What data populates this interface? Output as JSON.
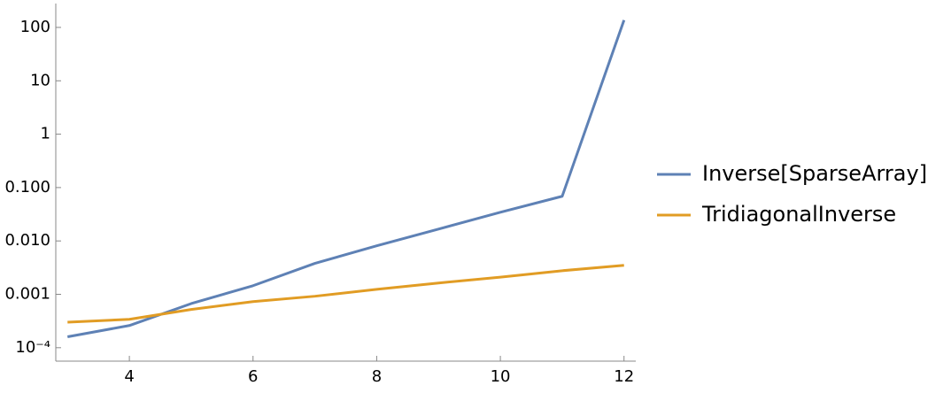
{
  "chart_data": {
    "type": "line",
    "log_y": true,
    "x": [
      3,
      4,
      5,
      6,
      7,
      8,
      9,
      10,
      11,
      12
    ],
    "series": [
      {
        "name": "Inverse[SparseArray]",
        "color": "#5e81b5",
        "values": [
          0.00016,
          0.00026,
          0.00067,
          0.00145,
          0.0038,
          0.0081,
          0.0167,
          0.0344,
          0.0686,
          137
        ]
      },
      {
        "name": "TridiagonalInverse",
        "color": "#e19c24",
        "values": [
          0.0003,
          0.00034,
          0.00052,
          0.00073,
          0.00092,
          0.00124,
          0.00163,
          0.0021,
          0.00277,
          0.0035
        ]
      }
    ],
    "xlim": [
      2.81,
      12.19
    ],
    "xticks": [
      4,
      6,
      8,
      10,
      12
    ],
    "ylim": [
      5.6e-05,
      280
    ],
    "yticks": [
      {
        "value": 0.0001,
        "label": "10⁻⁴"
      },
      0.001,
      {
        "value": 0.01,
        "label": "0.010"
      },
      {
        "value": 0.1,
        "label": "0.100"
      },
      1,
      10,
      100
    ],
    "legend": "right"
  }
}
